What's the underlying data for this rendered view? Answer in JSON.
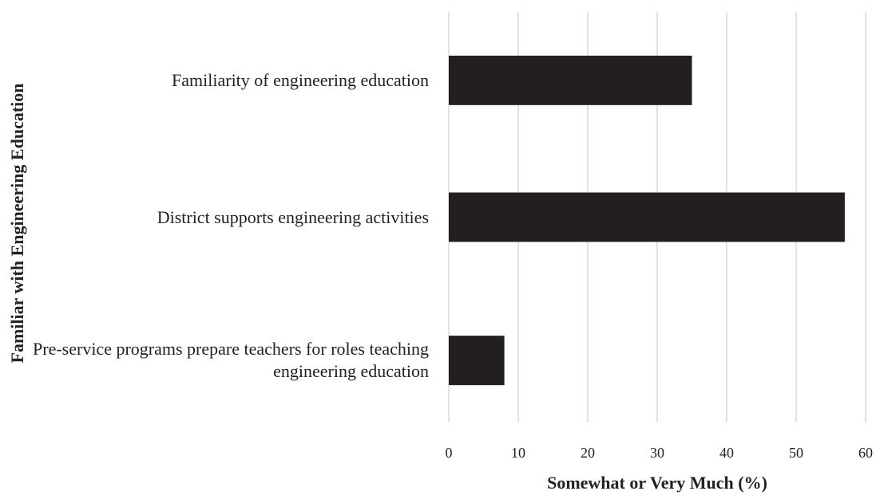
{
  "chart_data": {
    "type": "bar",
    "orientation": "horizontal",
    "x_label": "Somewhat or Very Much (%)",
    "y_label": "Familiar with Engineering Education",
    "categories": [
      "Familiarity of engineering education",
      "District supports engineering activities",
      "Pre-service programs prepare teachers for roles teaching engineering education"
    ],
    "values": [
      35,
      57,
      8
    ],
    "color": "#231f20",
    "xlim": [
      0,
      60
    ],
    "xticks": [
      0,
      10,
      20,
      30,
      40,
      50,
      60
    ],
    "grid": true
  }
}
